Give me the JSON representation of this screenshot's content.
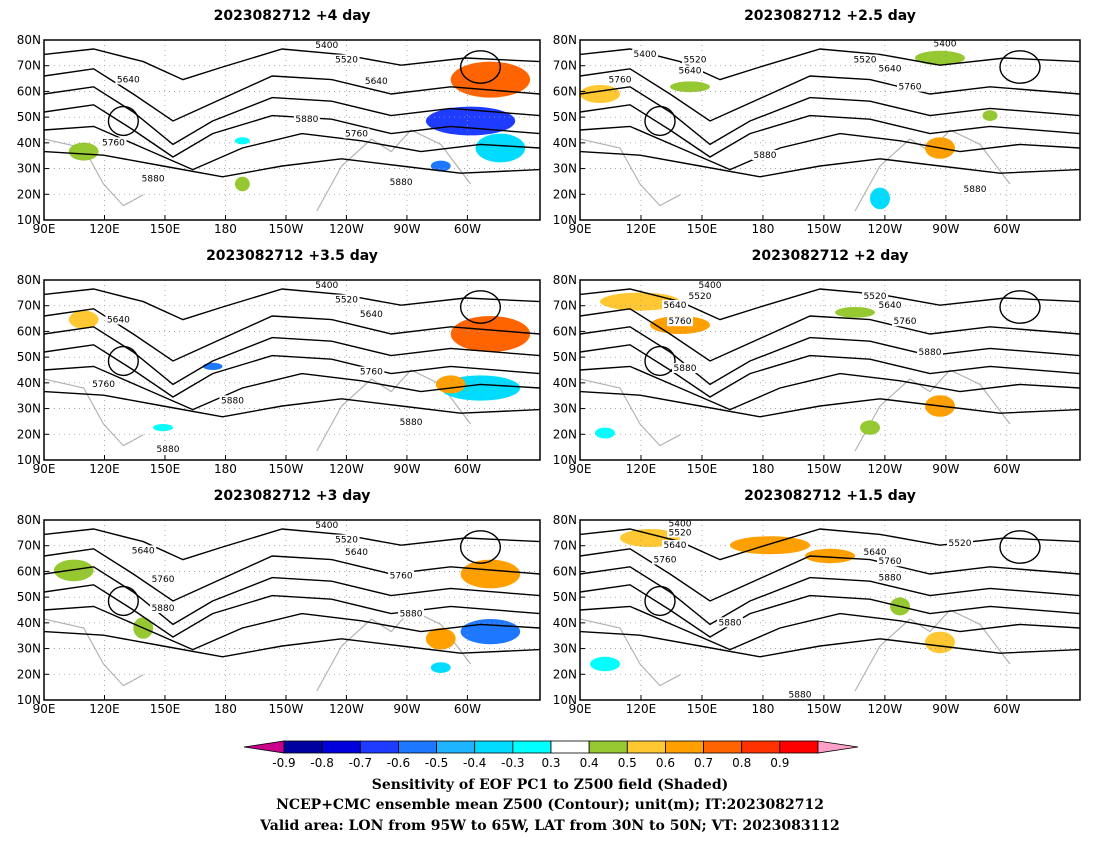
{
  "panels": [
    {
      "title": "2023082712  +4 day",
      "contour_labels": [
        "5400",
        "5520",
        "5640",
        "5640",
        "5760",
        "5760",
        "5880",
        "5880",
        "5880"
      ]
    },
    {
      "title": "2023082712  +2.5 day",
      "contour_labels": [
        "5400",
        "5400",
        "5520",
        "5520",
        "5640",
        "5640",
        "5760",
        "5760",
        "5880",
        "5880"
      ]
    },
    {
      "title": "2023082712  +3.5 day",
      "contour_labels": [
        "5400",
        "5520",
        "5640",
        "5640",
        "5760",
        "5760",
        "5880",
        "5880",
        "5880"
      ]
    },
    {
      "title": "2023082712  +2 day",
      "contour_labels": [
        "5400",
        "5520",
        "5520",
        "5640",
        "5640",
        "5760",
        "5760",
        "5880",
        "5880"
      ]
    },
    {
      "title": "2023082712  +3 day",
      "contour_labels": [
        "5400",
        "5520",
        "5640",
        "5640",
        "5760",
        "5760",
        "5880",
        "5880"
      ]
    },
    {
      "title": "2023082712  +1.5 day",
      "contour_labels": [
        "5400",
        "5520",
        "5520",
        "5640",
        "5640",
        "5760",
        "5760",
        "5880",
        "5880",
        "5880"
      ]
    }
  ],
  "axes": {
    "lat_ticks": [
      "10N",
      "20N",
      "30N",
      "40N",
      "50N",
      "60N",
      "70N",
      "80N"
    ],
    "lon_ticks": [
      "90E",
      "120E",
      "150E",
      "180",
      "150W",
      "120W",
      "90W",
      "60W"
    ]
  },
  "colorbar": {
    "ticks": [
      "-0.9",
      "-0.8",
      "-0.7",
      "-0.6",
      "-0.5",
      "-0.4",
      "-0.3",
      "0.3",
      "0.4",
      "0.5",
      "0.6",
      "0.7",
      "0.8",
      "0.9"
    ],
    "colors": [
      "#c8008c",
      "#0000a0",
      "#0000dc",
      "#1e3cff",
      "#1e78ff",
      "#1eb4ff",
      "#00dcff",
      "#00ffff",
      "#ffffff",
      "#96c832",
      "#ffc832",
      "#ffa000",
      "#ff6400",
      "#ff3200",
      "#ff0000",
      "#ffa0c8"
    ]
  },
  "caption": {
    "line1": "Sensitivity of EOF PC1 to Z500 field (Shaded)",
    "line2": "NCEP+CMC ensemble mean Z500 (Contour); unit(m); IT:2023082712",
    "line3": "Valid area: LON from 95W to 65W, LAT from 30N to 50N; VT: 2023083112"
  }
}
